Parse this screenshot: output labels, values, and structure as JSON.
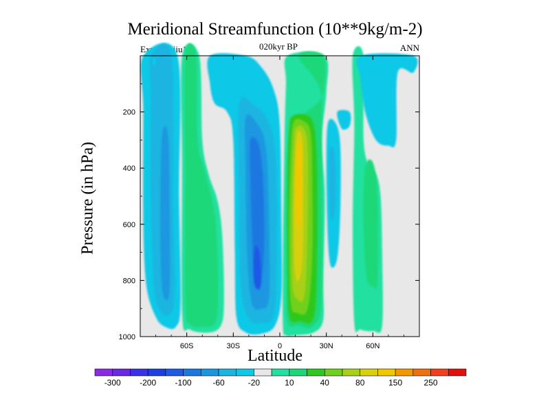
{
  "chart_data": {
    "type": "heatmap",
    "title": "Meridional Streamfunction (10**9kg/m-2)",
    "subtitle_left": "Expt = teiiu1",
    "subtitle_center": "020kyr BP",
    "subtitle_right": "ANN",
    "xlabel": "Latitude",
    "ylabel": "Pressure (in hPa)",
    "xlim": [
      -90,
      90
    ],
    "ylim": [
      1000,
      0
    ],
    "x_ticks": [
      {
        "value": -60,
        "label": "60S"
      },
      {
        "value": -30,
        "label": "30S"
      },
      {
        "value": 0,
        "label": "0"
      },
      {
        "value": 30,
        "label": "30N"
      },
      {
        "value": 60,
        "label": "60N"
      }
    ],
    "y_ticks": [
      200,
      400,
      600,
      800,
      1000
    ],
    "colorbar": {
      "labels": [
        "-300",
        "-200",
        "-100",
        "-60",
        "-20",
        "10",
        "40",
        "80",
        "150",
        "250"
      ],
      "colors": [
        "#8a2be2",
        "#6a28e0",
        "#3a33e6",
        "#1c3fe0",
        "#1e5ae6",
        "#1b78e0",
        "#1a97e0",
        "#1db4e0",
        "#0fc8e6",
        "#e8e8e8",
        "#22e0a0",
        "#1ed878",
        "#2ec81e",
        "#70d01c",
        "#a8d018",
        "#d8d010",
        "#f0c800",
        "#f09a00",
        "#f07010",
        "#f04020",
        "#e01010"
      ]
    },
    "features": [
      {
        "name": "negative cell 60S-90S",
        "lat_range": [
          -88,
          -64
        ],
        "p_range": [
          0,
          970
        ],
        "min_level": -60
      },
      {
        "name": "positive cell 50S-30S",
        "lat_range": [
          -63,
          -36
        ],
        "p_range": [
          0,
          980
        ],
        "max_level": 40
      },
      {
        "name": "negative cell 30S-0",
        "lat_range": [
          -29,
          1
        ],
        "p_range": [
          180,
          990
        ],
        "min_level": -100
      },
      {
        "name": "positive cell 0-30N",
        "lat_range": [
          3,
          29
        ],
        "p_range": [
          0,
          1000
        ],
        "max_level": 150
      },
      {
        "name": "negative cell 30N",
        "lat_range": [
          31,
          39
        ],
        "p_range": [
          240,
          750
        ],
        "min_level": -20
      },
      {
        "name": "positive band 50N-70N",
        "lat_range": [
          47,
          67
        ],
        "p_range": [
          0,
          980
        ],
        "max_level": 40
      },
      {
        "name": "negative cell 60N-80N",
        "lat_range": [
          52,
          80
        ],
        "p_range": [
          0,
          300
        ],
        "min_level": -20
      }
    ]
  }
}
